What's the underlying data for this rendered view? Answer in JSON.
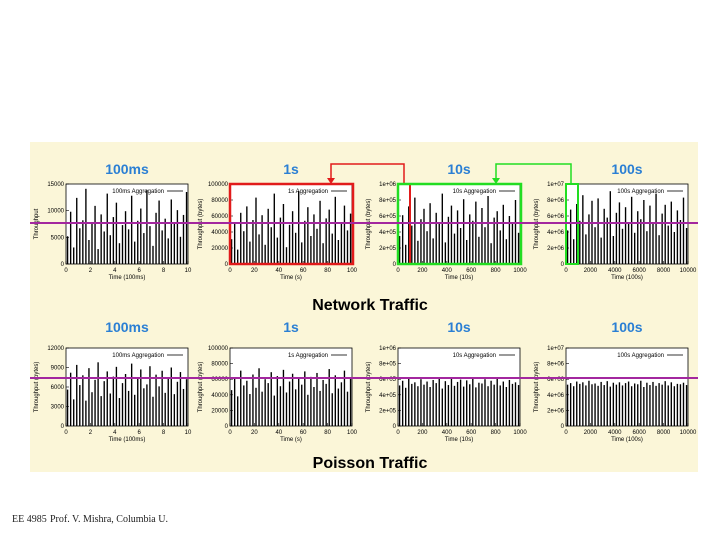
{
  "footer": {
    "course": "EE 4985",
    "author": "Prof. V. Mishra, Columbia U."
  },
  "colors": {
    "panel_background": "#fbf6d8",
    "bars": "#000000",
    "highlight_red": "#e11b1b",
    "highlight_green": "#22dd22",
    "reference_line": "#a3279f",
    "title_blue": "#2a7fd4"
  },
  "chart_data": [
    {
      "group": "Network Traffic",
      "type": "bar",
      "title": "100ms",
      "xlabel": "Time (100ms)",
      "ylabel": "Throughput",
      "legend": "100ms Aggregation",
      "legend_position": "top-right",
      "xlim": [
        0,
        10
      ],
      "ylim": [
        0,
        15000
      ],
      "xticks": [
        0,
        2,
        4,
        6,
        8,
        10
      ],
      "yticks": [
        0,
        5000,
        10000,
        15000
      ],
      "ytick_labels": [
        "0",
        "5000",
        "10000",
        "15000"
      ],
      "values": [
        5200,
        9800,
        3100,
        12400,
        6700,
        8200,
        14100,
        4500,
        7600,
        10900,
        2800,
        9300,
        6100,
        13200,
        5400,
        8800,
        11500,
        3900,
        7300,
        9900,
        6500,
        12800,
        4200,
        8100,
        10400,
        5800,
        13900,
        7100,
        3400,
        9600,
        11900,
        6300,
        8500,
        4800,
        12100,
        7800,
        10100,
        5100,
        9200,
        13500
      ]
    },
    {
      "group": "Network Traffic",
      "type": "bar",
      "title": "1s",
      "xlabel": "Time (s)",
      "ylabel": "Throughput (bytes)",
      "legend": "1s Aggregation",
      "legend_position": "top-right",
      "xlim": [
        0,
        100
      ],
      "ylim": [
        0,
        100000
      ],
      "xticks": [
        0,
        20,
        40,
        60,
        80,
        100
      ],
      "yticks": [
        0,
        20000,
        40000,
        60000,
        80000,
        100000
      ],
      "ytick_labels": [
        "0",
        "20000",
        "40000",
        "60000",
        "80000",
        "100000"
      ],
      "values": [
        31000,
        52000,
        18000,
        64000,
        41000,
        72000,
        28000,
        55000,
        83000,
        37000,
        61000,
        24000,
        69000,
        46000,
        88000,
        33000,
        58000,
        75000,
        21000,
        49000,
        66000,
        39000,
        91000,
        27000,
        54000,
        71000,
        35000,
        62000,
        44000,
        79000,
        26000,
        57000,
        68000,
        38000,
        84000,
        30000,
        51000,
        73000,
        42000,
        63000
      ]
    },
    {
      "group": "Network Traffic",
      "type": "bar",
      "title": "10s",
      "xlabel": "Time (10s)",
      "ylabel": "Throughput (bytes)",
      "legend": "10s Aggregation",
      "legend_position": "top-right",
      "xlim": [
        0,
        1000
      ],
      "ylim": [
        0,
        1000000
      ],
      "xticks": [
        0,
        200,
        400,
        600,
        800,
        1000
      ],
      "yticks": [
        0,
        200000,
        400000,
        600000,
        800000,
        1000000
      ],
      "ytick_labels": [
        "0",
        "2e+05",
        "4e+05",
        "6e+05",
        "8e+05",
        "1e+06"
      ],
      "values": [
        350000,
        610000,
        240000,
        720000,
        480000,
        830000,
        290000,
        560000,
        690000,
        410000,
        760000,
        320000,
        640000,
        510000,
        880000,
        270000,
        590000,
        730000,
        380000,
        670000,
        450000,
        810000,
        300000,
        620000,
        540000,
        780000,
        340000,
        700000,
        460000,
        850000,
        260000,
        580000,
        660000,
        420000,
        740000,
        310000,
        600000,
        520000,
        800000,
        390000
      ]
    },
    {
      "group": "Network Traffic",
      "type": "bar",
      "title": "100s",
      "xlabel": "Time (100s)",
      "ylabel": "Throughput (bytes)",
      "legend": "100s Aggregation",
      "legend_position": "top-right",
      "xlim": [
        0,
        10000
      ],
      "ylim": [
        0,
        10000000
      ],
      "xticks": [
        0,
        2000,
        4000,
        6000,
        8000,
        10000
      ],
      "yticks": [
        0,
        2000000,
        4000000,
        6000000,
        8000000,
        10000000
      ],
      "ytick_labels": [
        "0",
        "2e+06",
        "4e+06",
        "6e+06",
        "8e+06",
        "1e+07"
      ],
      "values": [
        4200000,
        6800000,
        3100000,
        7500000,
        5400000,
        8600000,
        3700000,
        6200000,
        7900000,
        4600000,
        8200000,
        3300000,
        6900000,
        5800000,
        9100000,
        3500000,
        6400000,
        7700000,
        4400000,
        7100000,
        5100000,
        8400000,
        3900000,
        6600000,
        5600000,
        8000000,
        4100000,
        7300000,
        5200000,
        8800000,
        3600000,
        6300000,
        7400000,
        4800000,
        7800000,
        4000000,
        6700000,
        5500000,
        8300000,
        4500000
      ]
    },
    {
      "group": "Poisson Traffic",
      "type": "bar",
      "title": "100ms",
      "xlabel": "Time (100ms)",
      "ylabel": "Throughput (bytes)",
      "legend": "100ms Aggregation",
      "legend_position": "top-right",
      "xlim": [
        0,
        10
      ],
      "ylim": [
        0,
        12000
      ],
      "xticks": [
        0,
        2,
        4,
        6,
        8,
        10
      ],
      "yticks": [
        0,
        3000,
        6000,
        9000,
        12000
      ],
      "ytick_labels": [
        "0",
        "3000",
        "6000",
        "9000",
        "12000"
      ],
      "values": [
        5600,
        8200,
        4100,
        9400,
        6300,
        7800,
        3900,
        8900,
        5200,
        7100,
        9800,
        4600,
        6900,
        8400,
        5000,
        7600,
        9100,
        4300,
        6600,
        8000,
        5400,
        9600,
        4800,
        7300,
        8700,
        5800,
        6400,
        9200,
        4500,
        7900,
        6100,
        8500,
        5100,
        7400,
        9000,
        4900,
        6800,
        8300,
        5700,
        7200
      ]
    },
    {
      "group": "Poisson Traffic",
      "type": "bar",
      "title": "1s",
      "xlabel": "Time (s)",
      "ylabel": "Throughput (bytes)",
      "legend": "1s Aggregation",
      "legend_position": "top-right",
      "xlim": [
        0,
        100
      ],
      "ylim": [
        0,
        100000
      ],
      "xticks": [
        0,
        20,
        40,
        60,
        80,
        100
      ],
      "yticks": [
        0,
        20000,
        40000,
        60000,
        80000,
        100000
      ],
      "ytick_labels": [
        "0",
        "20000",
        "40000",
        "60000",
        "80000",
        "100000"
      ],
      "values": [
        46000,
        62000,
        38000,
        71000,
        52000,
        58000,
        41000,
        66000,
        49000,
        74000,
        44000,
        60000,
        55000,
        69000,
        39000,
        64000,
        51000,
        72000,
        43000,
        57000,
        67000,
        47000,
        61000,
        53000,
        70000,
        40000,
        63000,
        50000,
        68000,
        45000,
        59000,
        54000,
        73000,
        42000,
        65000,
        48000,
        56000,
        71000,
        44000,
        62000
      ]
    },
    {
      "group": "Poisson Traffic",
      "type": "bar",
      "title": "10s",
      "xlabel": "Time (10s)",
      "ylabel": "Throughput (bytes)",
      "legend": "10s Aggregation",
      "legend_position": "top-right",
      "xlim": [
        0,
        1000
      ],
      "ylim": [
        0,
        1000000
      ],
      "xticks": [
        0,
        200,
        400,
        600,
        800,
        1000
      ],
      "yticks": [
        0,
        200000,
        400000,
        600000,
        800000,
        1000000
      ],
      "ytick_labels": [
        "0",
        "2e+05",
        "4e+05",
        "6e+05",
        "8e+05",
        "1e+06"
      ],
      "values": [
        520000,
        580000,
        490000,
        610000,
        540000,
        560000,
        510000,
        600000,
        530000,
        570000,
        500000,
        590000,
        550000,
        620000,
        480000,
        575000,
        525000,
        605000,
        515000,
        565000,
        595000,
        505000,
        585000,
        535000,
        615000,
        495000,
        555000,
        545000,
        600000,
        510000,
        580000,
        530000,
        610000,
        520000,
        570000,
        500000,
        590000,
        540000,
        560000,
        525000
      ]
    },
    {
      "group": "Poisson Traffic",
      "type": "bar",
      "title": "100s",
      "xlabel": "Time (100s)",
      "ylabel": "Throughput (bytes)",
      "legend": "100s Aggregation",
      "legend_position": "top-right",
      "xlim": [
        0,
        10000
      ],
      "ylim": [
        0,
        10000000
      ],
      "xticks": [
        0,
        2000,
        4000,
        6000,
        8000,
        10000
      ],
      "yticks": [
        0,
        2000000,
        4000000,
        6000000,
        8000000,
        10000000
      ],
      "ytick_labels": [
        "0",
        "2e+06",
        "4e+06",
        "6e+06",
        "8e+06",
        "1e+07"
      ],
      "values": [
        5300000,
        5500000,
        5100000,
        5700000,
        5400000,
        5600000,
        5200000,
        5800000,
        5350000,
        5450000,
        5150000,
        5650000,
        5250000,
        5750000,
        5050000,
        5550000,
        5300000,
        5600000,
        5200000,
        5500000,
        5700000,
        5100000,
        5450000,
        5350000,
        5800000,
        5000000,
        5550000,
        5250000,
        5650000,
        5150000,
        5500000,
        5300000,
        5750000,
        5200000,
        5600000,
        5100000,
        5400000,
        5350000,
        5550000,
        5250000
      ]
    }
  ]
}
